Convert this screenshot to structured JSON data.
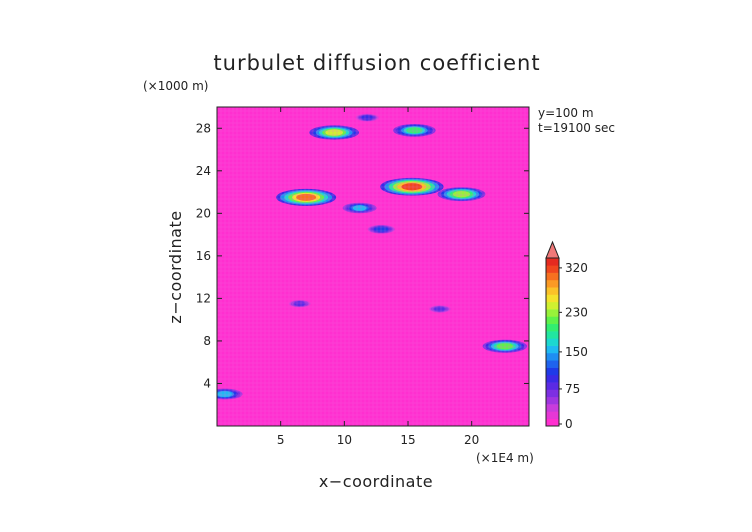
{
  "chart_data": {
    "type": "heatmap",
    "title": "turbulet diffusion coefficient",
    "xlabel": "x−coordinate",
    "ylabel": "z−coordinate",
    "x_unit": "(×1E4 m)",
    "y_unit": "(×1000 m)",
    "annotations": [
      "y=100 m",
      "t=19100 sec"
    ],
    "x_ticks": [
      5,
      10,
      15,
      20
    ],
    "y_ticks": [
      4,
      8,
      12,
      16,
      20,
      24,
      28
    ],
    "xlim": [
      0,
      24.5
    ],
    "ylim": [
      0,
      30
    ],
    "colorbar": {
      "ticks": [
        0,
        75,
        150,
        230,
        320
      ],
      "range": [
        0,
        340
      ],
      "extend": "max",
      "colors": [
        "#ff2fd0",
        "#e637d6",
        "#c83cdc",
        "#a035e0",
        "#7d2fe2",
        "#5a2ae4",
        "#3a2ae6",
        "#1f3ae8",
        "#1f63ee",
        "#1f8ef2",
        "#1fbaf2",
        "#1cd8d0",
        "#22e6a0",
        "#32ee70",
        "#5ef24a",
        "#98f23a",
        "#d0f030",
        "#f5e22c",
        "#fbc228",
        "#fb9a24",
        "#f77020",
        "#f0461e",
        "#e52a20"
      ],
      "overflow_color": "#f07878"
    },
    "background_value": 0,
    "features": [
      {
        "x": 7.0,
        "z": 21.5,
        "value": 300
      },
      {
        "x": 9.2,
        "z": 27.6,
        "value": 240
      },
      {
        "x": 15.3,
        "z": 22.5,
        "value": 320
      },
      {
        "x": 15.5,
        "z": 27.8,
        "value": 200
      },
      {
        "x": 19.2,
        "z": 21.8,
        "value": 230
      },
      {
        "x": 11.2,
        "z": 20.5,
        "value": 150
      },
      {
        "x": 12.9,
        "z": 18.5,
        "value": 110
      },
      {
        "x": 22.6,
        "z": 7.5,
        "value": 210
      },
      {
        "x": 0.6,
        "z": 3.0,
        "value": 160
      },
      {
        "x": 11.8,
        "z": 29.0,
        "value": 90
      },
      {
        "x": 6.5,
        "z": 11.5,
        "value": 80
      },
      {
        "x": 17.5,
        "z": 11.0,
        "value": 80
      }
    ]
  }
}
